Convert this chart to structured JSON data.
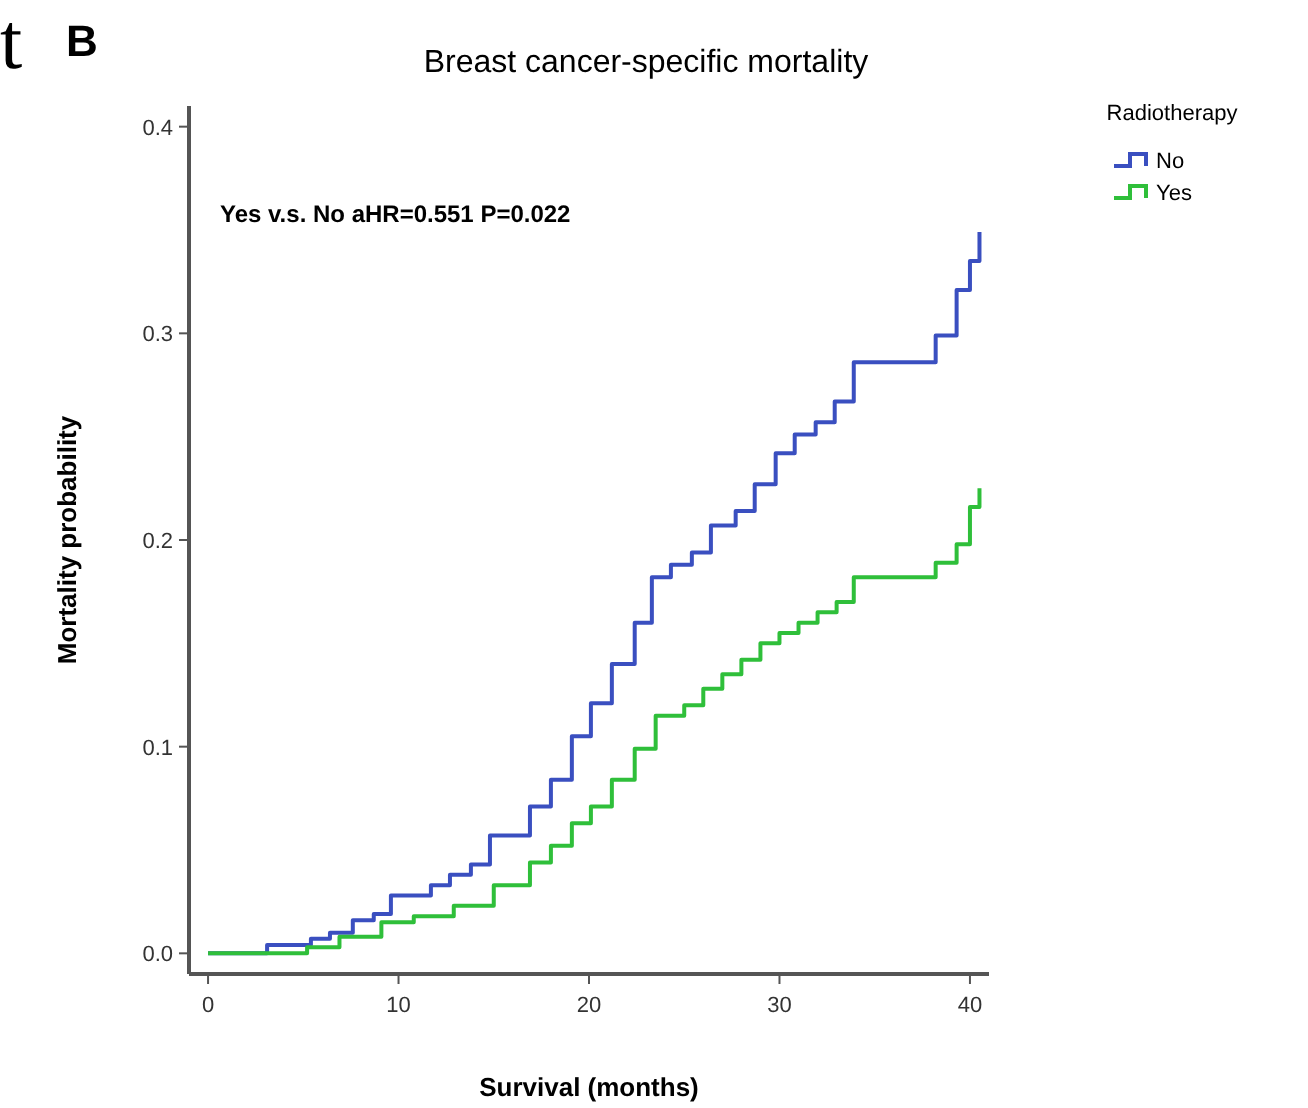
{
  "chart_data": {
    "type": "step",
    "title": "Breast cancer-specific mortality",
    "xlabel": "Survival (months)",
    "ylabel": "Mortality probability",
    "legend_title": "Radiotherapy",
    "legend": "top right",
    "grid": false,
    "xlim": [
      -1,
      41
    ],
    "xticks": [
      0,
      10,
      20,
      30,
      40
    ],
    "ylim": [
      -0.01,
      0.41
    ],
    "yticks": [
      {
        "value": 0,
        "label": "0.0"
      },
      0.1,
      0.2,
      0.3,
      0.4
    ],
    "annotations": [
      "t",
      "B",
      "Yes v.s. No aHR=0.551 P=0.022"
    ],
    "series": [
      {
        "name": "No",
        "color": "#3a4fc0",
        "x": [
          0,
          3.1,
          5.4,
          6.4,
          7.6,
          8.7,
          9.6,
          11.7,
          12.7,
          13.8,
          14.8,
          16.9,
          18.0,
          19.1,
          20.1,
          21.2,
          22.4,
          23.3,
          24.3,
          25.4,
          26.4,
          27.7,
          28.7,
          29.8,
          30.8,
          31.9,
          32.9,
          33.9,
          38.2,
          39.3,
          40.0,
          40.5
        ],
        "values": [
          0,
          0.004,
          0.007,
          0.01,
          0.016,
          0.019,
          0.028,
          0.033,
          0.038,
          0.043,
          0.057,
          0.071,
          0.084,
          0.105,
          0.121,
          0.14,
          0.16,
          0.182,
          0.188,
          0.194,
          0.207,
          0.214,
          0.227,
          0.242,
          0.251,
          0.257,
          0.267,
          0.286,
          0.299,
          0.321,
          0.335,
          0.349
        ]
      },
      {
        "name": "Yes",
        "color": "#2fbf3a",
        "x": [
          0,
          5.2,
          6.9,
          9.1,
          10.8,
          12.9,
          15.0,
          16.9,
          18.0,
          19.1,
          20.1,
          21.2,
          22.4,
          23.5,
          25.0,
          26.0,
          27.0,
          28.0,
          29.0,
          30.0,
          31.0,
          32.0,
          33.0,
          33.9,
          38.2,
          39.3,
          40.0,
          40.5
        ],
        "values": [
          0,
          0.003,
          0.008,
          0.015,
          0.018,
          0.023,
          0.033,
          0.044,
          0.052,
          0.063,
          0.071,
          0.084,
          0.099,
          0.115,
          0.12,
          0.128,
          0.135,
          0.142,
          0.15,
          0.155,
          0.16,
          0.165,
          0.17,
          0.182,
          0.189,
          0.198,
          0.216,
          0.225
        ]
      }
    ]
  }
}
